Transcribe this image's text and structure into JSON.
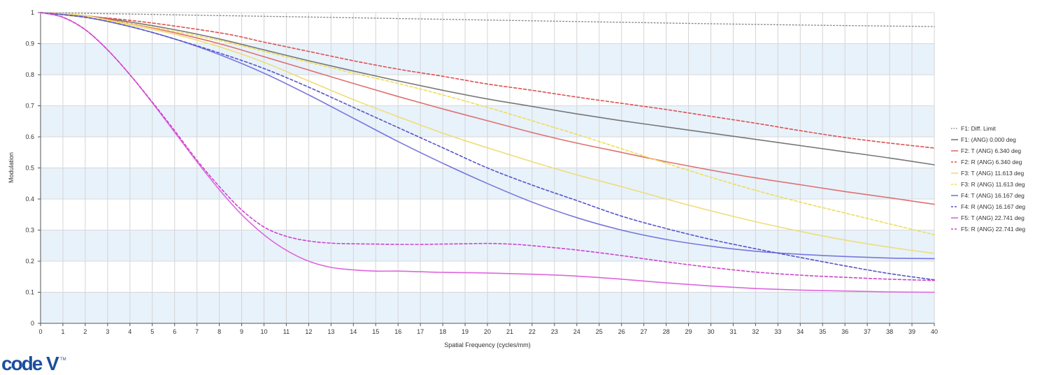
{
  "logo": {
    "text": "code",
    "suffix": "V",
    "tm": "TM"
  },
  "chart_data": {
    "type": "line",
    "title": "",
    "xlabel": "Spatial Frequency (cycles/mm)",
    "ylabel": "Modulation",
    "xlim": [
      0,
      40
    ],
    "ylim": [
      0,
      1
    ],
    "x_ticks": [
      "0",
      "1",
      "2",
      "3",
      "4",
      "5",
      "6",
      "7",
      "8",
      "9",
      "10",
      "11",
      "12",
      "13",
      "14",
      "15",
      "16",
      "17",
      "18",
      "19",
      "20",
      "21",
      "22",
      "23",
      "24",
      "25",
      "26",
      "27",
      "28",
      "29",
      "30",
      "31",
      "32",
      "33",
      "34",
      "35",
      "36",
      "37",
      "38",
      "39",
      "40"
    ],
    "y_ticks": [
      "0",
      "0.1",
      "0.2",
      "0.3",
      "0.4",
      "0.5",
      "0.6",
      "0.7",
      "0.8",
      "0.9",
      "1"
    ],
    "grid": true,
    "legend_position": "right",
    "series": [
      {
        "name": "F1: Diff. Limit",
        "color": "#888888",
        "dash": "dotted",
        "points": [
          [
            0,
            1
          ],
          [
            5,
            0.994
          ],
          [
            10,
            0.988
          ],
          [
            15,
            0.982
          ],
          [
            20,
            0.976
          ],
          [
            25,
            0.97
          ],
          [
            30,
            0.964
          ],
          [
            35,
            0.959
          ],
          [
            40,
            0.955
          ]
        ]
      },
      {
        "name": "F1: (ANG) 0.000 deg",
        "color": "#777777",
        "dash": "solid",
        "points": [
          [
            0,
            1
          ],
          [
            2,
            0.99
          ],
          [
            4,
            0.97
          ],
          [
            6,
            0.945
          ],
          [
            8,
            0.915
          ],
          [
            10,
            0.88
          ],
          [
            12,
            0.845
          ],
          [
            14,
            0.812
          ],
          [
            16,
            0.78
          ],
          [
            18,
            0.75
          ],
          [
            20,
            0.722
          ],
          [
            22,
            0.698
          ],
          [
            24,
            0.674
          ],
          [
            26,
            0.652
          ],
          [
            28,
            0.632
          ],
          [
            30,
            0.612
          ],
          [
            32,
            0.592
          ],
          [
            34,
            0.572
          ],
          [
            36,
            0.552
          ],
          [
            38,
            0.532
          ],
          [
            40,
            0.51
          ]
        ]
      },
      {
        "name": "F2: T (ANG) 6.340 deg",
        "color": "#e07070",
        "dash": "solid",
        "points": [
          [
            0,
            1
          ],
          [
            2,
            0.99
          ],
          [
            4,
            0.965
          ],
          [
            6,
            0.935
          ],
          [
            8,
            0.9
          ],
          [
            10,
            0.858
          ],
          [
            12,
            0.815
          ],
          [
            14,
            0.772
          ],
          [
            16,
            0.73
          ],
          [
            18,
            0.69
          ],
          [
            20,
            0.652
          ],
          [
            22,
            0.614
          ],
          [
            24,
            0.58
          ],
          [
            26,
            0.55
          ],
          [
            28,
            0.52
          ],
          [
            30,
            0.493
          ],
          [
            32,
            0.468
          ],
          [
            34,
            0.446
          ],
          [
            36,
            0.424
          ],
          [
            38,
            0.404
          ],
          [
            40,
            0.383
          ]
        ]
      },
      {
        "name": "F2: R (ANG) 6.340 deg",
        "color": "#e05050",
        "dash": "dashed",
        "points": [
          [
            0,
            1
          ],
          [
            4,
            0.975
          ],
          [
            8,
            0.935
          ],
          [
            10,
            0.905
          ],
          [
            12,
            0.875
          ],
          [
            14,
            0.845
          ],
          [
            16,
            0.818
          ],
          [
            18,
            0.795
          ],
          [
            20,
            0.77
          ],
          [
            22,
            0.75
          ],
          [
            24,
            0.728
          ],
          [
            26,
            0.708
          ],
          [
            28,
            0.688
          ],
          [
            30,
            0.666
          ],
          [
            32,
            0.644
          ],
          [
            34,
            0.62
          ],
          [
            36,
            0.598
          ],
          [
            38,
            0.58
          ],
          [
            40,
            0.564
          ]
        ]
      },
      {
        "name": "F3: T (ANG) 11.613 deg",
        "color": "#eedd77",
        "dash": "solid",
        "points": [
          [
            0,
            1
          ],
          [
            2,
            0.99
          ],
          [
            4,
            0.96
          ],
          [
            6,
            0.93
          ],
          [
            8,
            0.89
          ],
          [
            10,
            0.84
          ],
          [
            12,
            0.78
          ],
          [
            14,
            0.72
          ],
          [
            16,
            0.665
          ],
          [
            18,
            0.612
          ],
          [
            20,
            0.565
          ],
          [
            22,
            0.52
          ],
          [
            24,
            0.478
          ],
          [
            26,
            0.44
          ],
          [
            28,
            0.4
          ],
          [
            30,
            0.362
          ],
          [
            32,
            0.327
          ],
          [
            34,
            0.296
          ],
          [
            36,
            0.268
          ],
          [
            38,
            0.245
          ],
          [
            40,
            0.225
          ]
        ]
      },
      {
        "name": "F3: R (ANG) 11.613 deg",
        "color": "#eedd55",
        "dash": "dashed",
        "points": [
          [
            0,
            1
          ],
          [
            4,
            0.965
          ],
          [
            8,
            0.91
          ],
          [
            10,
            0.875
          ],
          [
            12,
            0.84
          ],
          [
            14,
            0.805
          ],
          [
            16,
            0.772
          ],
          [
            18,
            0.735
          ],
          [
            20,
            0.695
          ],
          [
            22,
            0.652
          ],
          [
            24,
            0.608
          ],
          [
            26,
            0.562
          ],
          [
            28,
            0.515
          ],
          [
            30,
            0.47
          ],
          [
            32,
            0.428
          ],
          [
            34,
            0.39
          ],
          [
            36,
            0.355
          ],
          [
            38,
            0.32
          ],
          [
            40,
            0.285
          ]
        ]
      },
      {
        "name": "F4: T (ANG) 16.167 deg",
        "color": "#7777dd",
        "dash": "solid",
        "points": [
          [
            0,
            1
          ],
          [
            2,
            0.985
          ],
          [
            4,
            0.955
          ],
          [
            6,
            0.915
          ],
          [
            8,
            0.865
          ],
          [
            10,
            0.805
          ],
          [
            12,
            0.735
          ],
          [
            14,
            0.66
          ],
          [
            16,
            0.585
          ],
          [
            18,
            0.515
          ],
          [
            20,
            0.45
          ],
          [
            22,
            0.39
          ],
          [
            24,
            0.34
          ],
          [
            26,
            0.3
          ],
          [
            28,
            0.27
          ],
          [
            30,
            0.248
          ],
          [
            32,
            0.232
          ],
          [
            34,
            0.222
          ],
          [
            36,
            0.215
          ],
          [
            38,
            0.21
          ],
          [
            40,
            0.208
          ]
        ]
      },
      {
        "name": "F4: R (ANG) 16.167 deg",
        "color": "#5555cc",
        "dash": "dashed",
        "points": [
          [
            0,
            1
          ],
          [
            2,
            0.985
          ],
          [
            4,
            0.955
          ],
          [
            6,
            0.915
          ],
          [
            8,
            0.87
          ],
          [
            10,
            0.82
          ],
          [
            12,
            0.76
          ],
          [
            14,
            0.695
          ],
          [
            16,
            0.63
          ],
          [
            18,
            0.565
          ],
          [
            20,
            0.5
          ],
          [
            22,
            0.445
          ],
          [
            24,
            0.395
          ],
          [
            26,
            0.345
          ],
          [
            28,
            0.305
          ],
          [
            30,
            0.27
          ],
          [
            32,
            0.24
          ],
          [
            34,
            0.212
          ],
          [
            36,
            0.185
          ],
          [
            38,
            0.16
          ],
          [
            40,
            0.14
          ]
        ]
      },
      {
        "name": "F5: T (ANG) 22.741 deg",
        "color": "#dd66dd",
        "dash": "solid",
        "points": [
          [
            0,
            1
          ],
          [
            1,
            0.985
          ],
          [
            2,
            0.945
          ],
          [
            3,
            0.88
          ],
          [
            4,
            0.8
          ],
          [
            5,
            0.71
          ],
          [
            6,
            0.615
          ],
          [
            7,
            0.52
          ],
          [
            8,
            0.43
          ],
          [
            9,
            0.35
          ],
          [
            10,
            0.285
          ],
          [
            11,
            0.235
          ],
          [
            12,
            0.2
          ],
          [
            13,
            0.18
          ],
          [
            14,
            0.172
          ],
          [
            15,
            0.168
          ],
          [
            16,
            0.168
          ],
          [
            17,
            0.166
          ],
          [
            18,
            0.164
          ],
          [
            20,
            0.162
          ],
          [
            22,
            0.158
          ],
          [
            24,
            0.152
          ],
          [
            26,
            0.142
          ],
          [
            28,
            0.13
          ],
          [
            30,
            0.12
          ],
          [
            32,
            0.112
          ],
          [
            34,
            0.107
          ],
          [
            36,
            0.104
          ],
          [
            38,
            0.101
          ],
          [
            40,
            0.1
          ]
        ]
      },
      {
        "name": "F5: R (ANG) 22.741 deg",
        "color": "#cc44cc",
        "dash": "dashed",
        "points": [
          [
            0,
            1
          ],
          [
            1,
            0.985
          ],
          [
            2,
            0.945
          ],
          [
            3,
            0.88
          ],
          [
            4,
            0.8
          ],
          [
            5,
            0.712
          ],
          [
            6,
            0.62
          ],
          [
            7,
            0.525
          ],
          [
            8,
            0.44
          ],
          [
            9,
            0.365
          ],
          [
            10,
            0.31
          ],
          [
            11,
            0.28
          ],
          [
            12,
            0.265
          ],
          [
            13,
            0.258
          ],
          [
            14,
            0.256
          ],
          [
            15,
            0.255
          ],
          [
            16,
            0.254
          ],
          [
            17,
            0.254
          ],
          [
            18,
            0.255
          ],
          [
            19,
            0.256
          ],
          [
            20,
            0.257
          ],
          [
            21,
            0.255
          ],
          [
            22,
            0.25
          ],
          [
            24,
            0.236
          ],
          [
            26,
            0.218
          ],
          [
            28,
            0.198
          ],
          [
            30,
            0.18
          ],
          [
            32,
            0.165
          ],
          [
            34,
            0.155
          ],
          [
            36,
            0.148
          ],
          [
            38,
            0.142
          ],
          [
            40,
            0.138
          ]
        ]
      }
    ]
  }
}
